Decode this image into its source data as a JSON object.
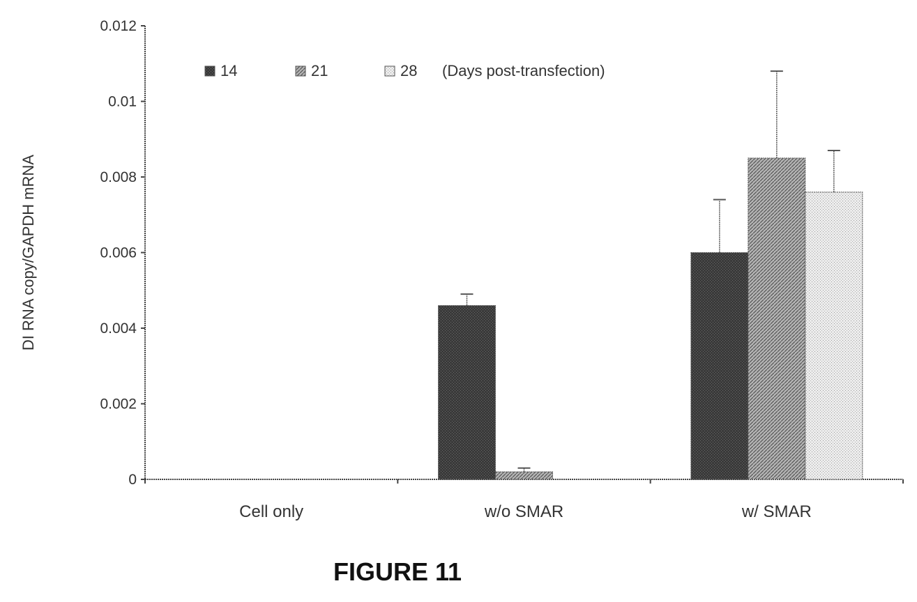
{
  "figure_caption": "FIGURE 11",
  "chart_data": {
    "type": "bar",
    "title": "",
    "xlabel": "",
    "ylabel": "DI RNA copy/GAPDH mRNA",
    "ylim": [
      0,
      0.012
    ],
    "yticks": [
      {
        "value": 0,
        "label": "0"
      },
      {
        "value": 0.002,
        "label": "0.002"
      },
      {
        "value": 0.004,
        "label": "0.004"
      },
      {
        "value": 0.006,
        "label": "0.006"
      },
      {
        "value": 0.008,
        "label": "0.008"
      },
      {
        "value": 0.01,
        "label": "0.01"
      },
      {
        "value": 0.012,
        "label": "0.012"
      }
    ],
    "categories": [
      "Cell only",
      "w/o SMAR",
      "w/ SMAR"
    ],
    "legend": {
      "placement": "top-left",
      "suffix": "(Days post-transfection)"
    },
    "grid": false,
    "series": [
      {
        "name": "14",
        "color": "#3a3a3a",
        "values": [
          0,
          0.0046,
          0.006
        ],
        "errors": [
          null,
          0.0003,
          0.0014
        ]
      },
      {
        "name": "21",
        "color": "#8a8a8a",
        "values": [
          0,
          0.0002,
          0.0085
        ],
        "errors": [
          null,
          0.0001,
          0.0023
        ]
      },
      {
        "name": "28",
        "color": "#d0d0d0",
        "values": [
          0,
          0,
          0.0076
        ],
        "errors": [
          null,
          null,
          0.0011
        ]
      }
    ]
  }
}
